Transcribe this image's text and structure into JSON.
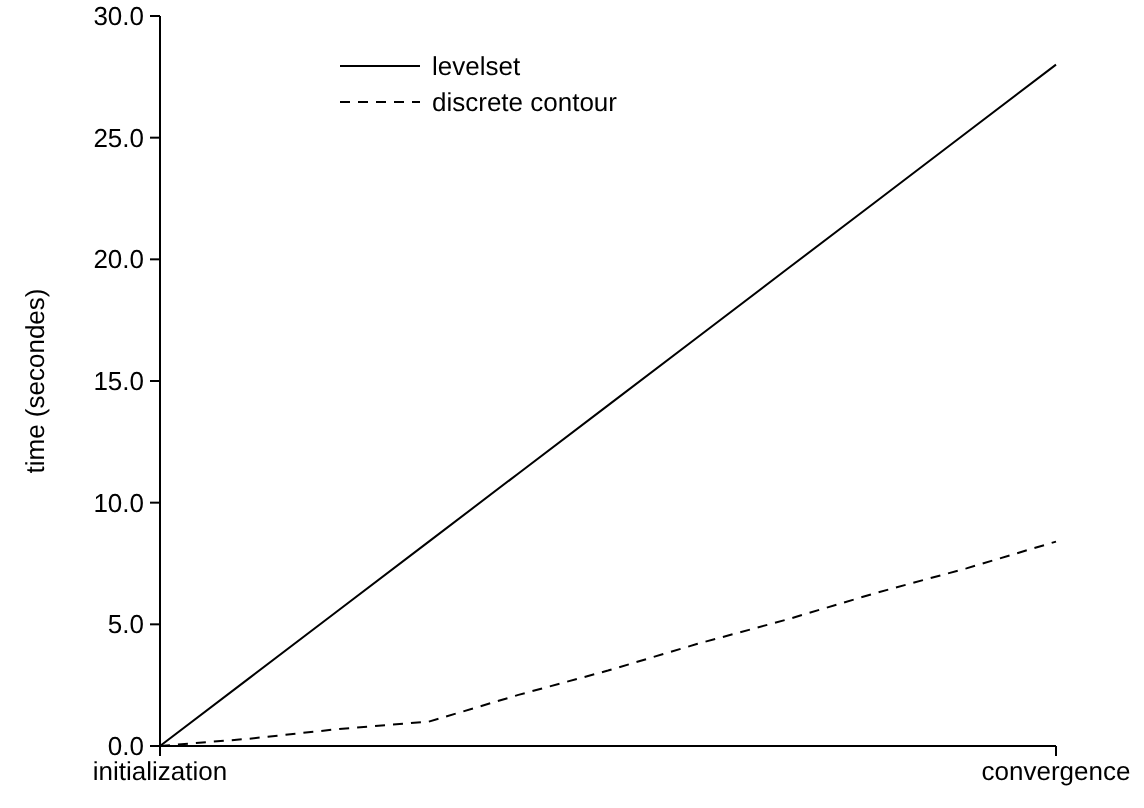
{
  "chart_data": {
    "type": "line",
    "ylabel": "time (secondes)",
    "categories": [
      "initialization",
      null,
      null,
      null,
      null,
      null,
      null,
      null,
      null,
      null,
      "convergence"
    ],
    "ylim": [
      0,
      30
    ],
    "yticks": [
      {
        "value": 0,
        "label": "0.0"
      },
      {
        "value": 5,
        "label": "5.0"
      },
      {
        "value": 10,
        "label": "10.0"
      },
      {
        "value": 15,
        "label": "15.0"
      },
      {
        "value": 20,
        "label": "20.0"
      },
      {
        "value": 25,
        "label": "25.0"
      },
      {
        "value": 30,
        "label": "30.0"
      }
    ],
    "series": [
      {
        "name": "levelset",
        "color": "#000000",
        "values": [
          0,
          2.8,
          5.6,
          8.4,
          11.2,
          14,
          16.8,
          19.6,
          22.4,
          25.2,
          28
        ],
        "line_style": "solid"
      },
      {
        "name": "discrete contour",
        "color": "#000000",
        "values": [
          0,
          0.3,
          0.7,
          1,
          2.1,
          3.1,
          4.2,
          5.2,
          6.3,
          7.3,
          8.4
        ],
        "line_style": "dashed"
      }
    ],
    "grid": false,
    "legend": "top left",
    "marker": "none"
  }
}
